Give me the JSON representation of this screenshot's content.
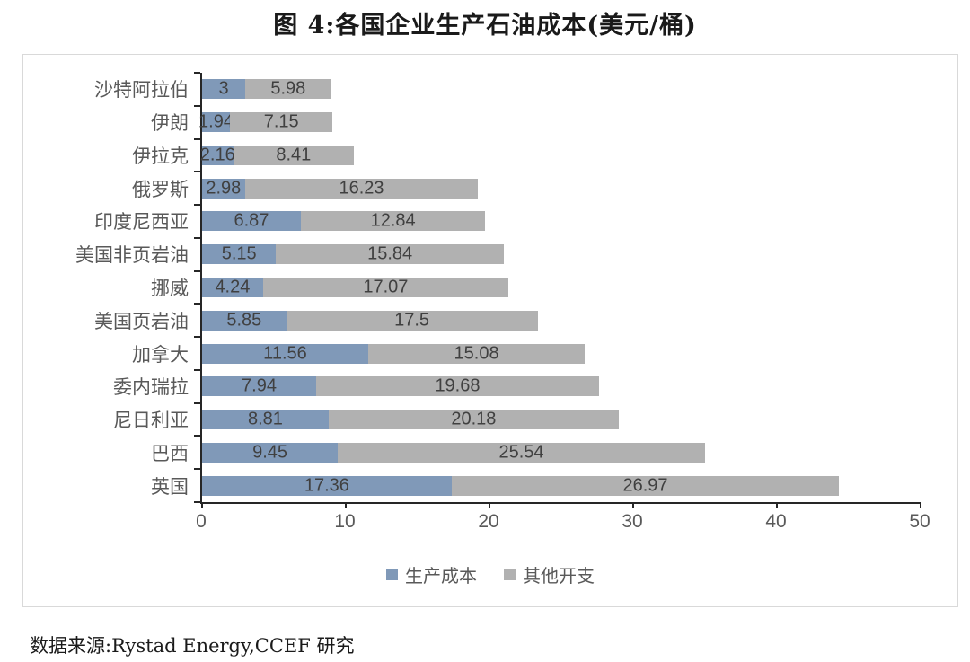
{
  "page": {
    "title": "图 4:各国企业生产石油成本(美元/桶)",
    "source_note": "数据来源:Rystad Energy,CCEF 研究"
  },
  "colors": {
    "production_cost_blue": "#8099b8",
    "other_expense_gray": "#b1b1b1",
    "axis": "#262626",
    "frame_border": "#d9d9d9",
    "category_text": "#595959",
    "value_text": "#404040"
  },
  "chart_data": {
    "type": "bar",
    "orientation": "horizontal",
    "stacked": true,
    "title": "图 4:各国企业生产石油成本(美元/桶)",
    "xlabel": "",
    "ylabel": "",
    "xlim": [
      0,
      50
    ],
    "x_ticks": [
      "0",
      "10",
      "20",
      "30",
      "40",
      "50"
    ],
    "grid": false,
    "legend_position": "bottom",
    "categories": [
      "沙特阿拉伯",
      "伊朗",
      "伊拉克",
      "俄罗斯",
      "印度尼西亚",
      "美国非页岩油",
      "挪威",
      "美国页岩油",
      "加拿大",
      "委内瑞拉",
      "尼日利亚",
      "巴西",
      "英国"
    ],
    "series": [
      {
        "name": "生产成本",
        "color": "#8099b8",
        "values": [
          3,
          1.94,
          2.16,
          2.98,
          6.87,
          5.15,
          4.24,
          5.85,
          11.56,
          7.94,
          8.81,
          9.45,
          17.36
        ],
        "labels": [
          "3",
          "1.94",
          "2.16",
          "2.98",
          "6.87",
          "5.15",
          "4.24",
          "5.85",
          "11.56",
          "7.94",
          "8.81",
          "9.45",
          "17.36"
        ]
      },
      {
        "name": "其他开支",
        "color": "#b1b1b1",
        "values": [
          5.98,
          7.15,
          8.41,
          16.23,
          12.84,
          15.84,
          17.07,
          17.5,
          15.08,
          19.68,
          20.18,
          25.54,
          26.97
        ],
        "labels": [
          "5.98",
          "7.15",
          "8.41",
          "16.23",
          "12.84",
          "15.84",
          "17.07",
          "17.5",
          "15.08",
          "19.68",
          "20.18",
          "25.54",
          "26.97"
        ]
      }
    ]
  }
}
